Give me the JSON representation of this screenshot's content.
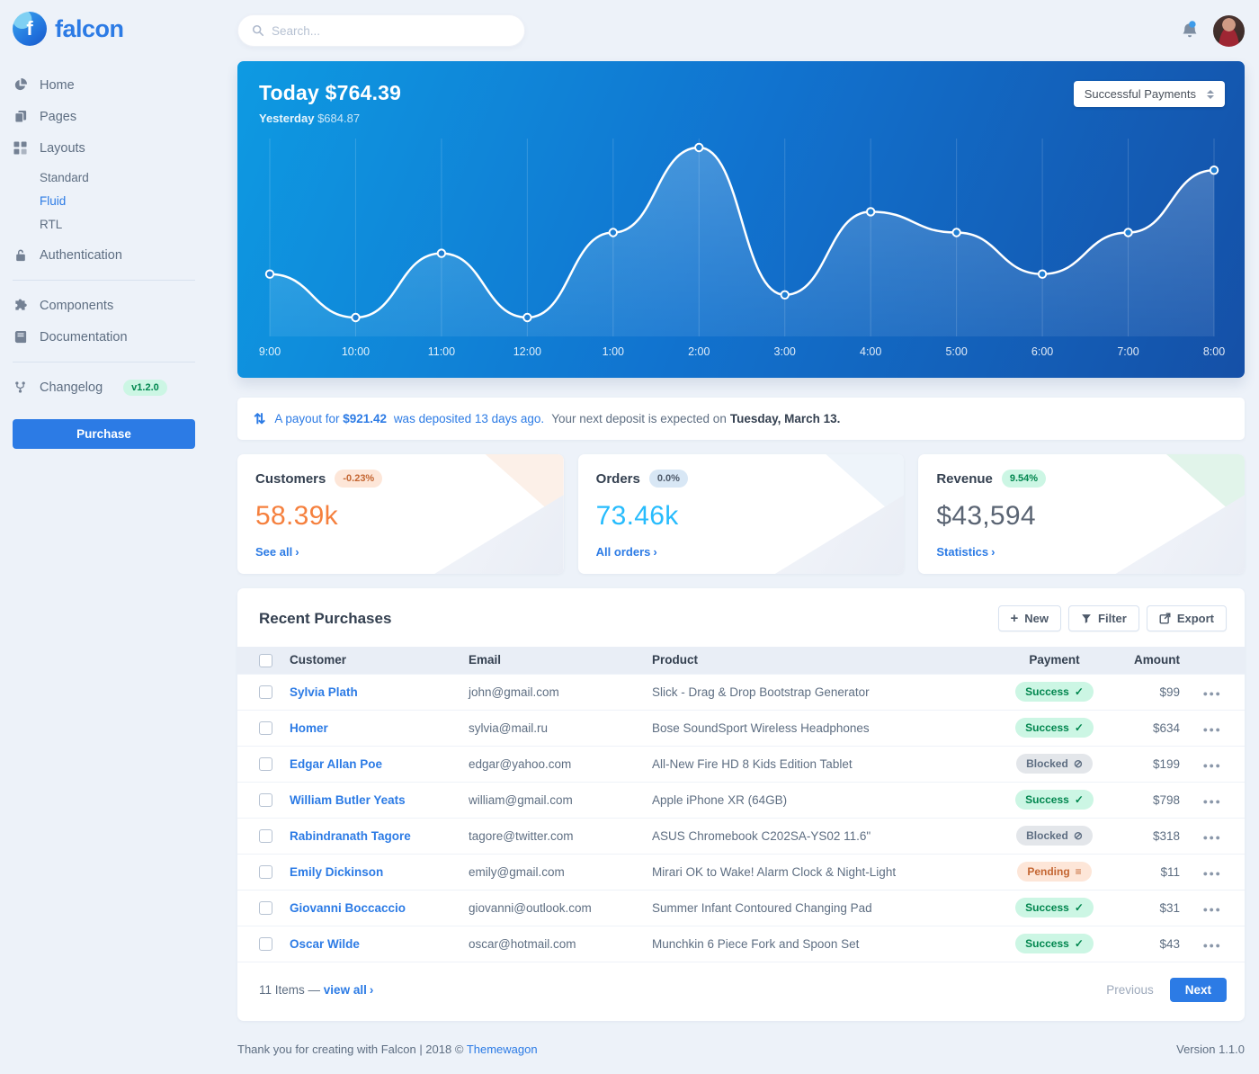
{
  "brand": {
    "name": "falcon"
  },
  "topbar": {
    "search_placeholder": "Search..."
  },
  "sidebar": {
    "items": [
      {
        "label": "Home",
        "icon": "chart-pie-icon"
      },
      {
        "label": "Pages",
        "icon": "copy-icon"
      },
      {
        "label": "Layouts",
        "icon": "grid-icon"
      },
      {
        "label": "Authentication",
        "icon": "unlock-icon"
      },
      {
        "label": "Components",
        "icon": "puzzle-icon"
      },
      {
        "label": "Documentation",
        "icon": "book-icon"
      },
      {
        "label": "Changelog",
        "icon": "code-branch-icon",
        "badge": "v1.2.0"
      }
    ],
    "layout_children": [
      {
        "label": "Standard",
        "active": false
      },
      {
        "label": "Fluid",
        "active": true
      },
      {
        "label": "RTL",
        "active": false
      }
    ],
    "purchase_label": "Purchase"
  },
  "chart_card": {
    "today_label": "Today",
    "today_value": "$764.39",
    "yesterday_label": "Yesterday",
    "yesterday_value": "$684.87",
    "select_value": "Successful Payments"
  },
  "chart_data": {
    "type": "line",
    "title": "Today $764.39 — successful payments by hour",
    "x": [
      "9:00",
      "10:00",
      "11:00",
      "12:00",
      "1:00",
      "2:00",
      "3:00",
      "4:00",
      "5:00",
      "6:00",
      "7:00",
      "8:00"
    ],
    "values": [
      33,
      10,
      44,
      10,
      55,
      100,
      22,
      66,
      55,
      33,
      55,
      88
    ],
    "ylim": [
      0,
      100
    ],
    "grid": "vertical-only",
    "legend": "none",
    "line_color": "#ffffff",
    "area_fill": "rgba(255,255,255,0.18)",
    "background_gradient": [
      "#0e9ae2",
      "#1550a7"
    ]
  },
  "payout": {
    "icon": "exchange-arrows-icon",
    "link_prefix": "A payout for",
    "amount": "$921.42",
    "link_suffix": "was deposited 13 days ago.",
    "text": "Your next deposit is expected on",
    "date": "Tuesday, March 13."
  },
  "stats": [
    {
      "title": "Customers",
      "badge": "-0.23%",
      "value": "58.39k",
      "link": "See all",
      "value_color": "#f5803e",
      "badge_bg": "#fde6d8",
      "badge_color": "#c46632"
    },
    {
      "title": "Orders",
      "badge": "0.0%",
      "value": "73.46k",
      "link": "All orders",
      "value_color": "#27bcfd",
      "badge_bg": "#d8e7f5",
      "badge_color": "#4d5969"
    },
    {
      "title": "Revenue",
      "badge": "9.54%",
      "value": "$43,594",
      "link": "Statistics",
      "value_color": "#5a6473",
      "badge_bg": "#ccf6e4",
      "badge_color": "#00864e"
    }
  ],
  "purchases": {
    "title": "Recent Purchases",
    "buttons": [
      {
        "label": "New",
        "icon": "plus-icon"
      },
      {
        "label": "Filter",
        "icon": "filter-icon"
      },
      {
        "label": "Export",
        "icon": "export-icon"
      }
    ],
    "columns": [
      "Customer",
      "Email",
      "Product",
      "Payment",
      "Amount"
    ],
    "rows": [
      {
        "customer": "Sylvia Plath",
        "email": "john@gmail.com",
        "product": "Slick - Drag & Drop Bootstrap Generator",
        "status": "Success",
        "status_type": "success",
        "status_icon": "check-icon",
        "amount": "$99"
      },
      {
        "customer": "Homer",
        "email": "sylvia@mail.ru",
        "product": "Bose SoundSport Wireless Headphones",
        "status": "Success",
        "status_type": "success",
        "status_icon": "check-icon",
        "amount": "$634"
      },
      {
        "customer": "Edgar Allan Poe",
        "email": "edgar@yahoo.com",
        "product": "All-New Fire HD 8 Kids Edition Tablet",
        "status": "Blocked",
        "status_type": "blocked",
        "status_icon": "ban-icon",
        "amount": "$199"
      },
      {
        "customer": "William Butler Yeats",
        "email": "william@gmail.com",
        "product": "Apple iPhone XR (64GB)",
        "status": "Success",
        "status_type": "success",
        "status_icon": "check-icon",
        "amount": "$798"
      },
      {
        "customer": "Rabindranath Tagore",
        "email": "tagore@twitter.com",
        "product": "ASUS Chromebook C202SA-YS02 11.6\"",
        "status": "Blocked",
        "status_type": "blocked",
        "status_icon": "ban-icon",
        "amount": "$318"
      },
      {
        "customer": "Emily Dickinson",
        "email": "emily@gmail.com",
        "product": "Mirari OK to Wake! Alarm Clock & Night-Light",
        "status": "Pending",
        "status_type": "pending",
        "status_icon": "stream-icon",
        "amount": "$11"
      },
      {
        "customer": "Giovanni Boccaccio",
        "email": "giovanni@outlook.com",
        "product": "Summer Infant Contoured Changing Pad",
        "status": "Success",
        "status_type": "success",
        "status_icon": "check-icon",
        "amount": "$31"
      },
      {
        "customer": "Oscar Wilde",
        "email": "oscar@hotmail.com",
        "product": "Munchkin 6 Piece Fork and Spoon Set",
        "status": "Success",
        "status_type": "success",
        "status_icon": "check-icon",
        "amount": "$43"
      }
    ],
    "footer": {
      "items_text": "11 Items —",
      "view_all": "view all",
      "previous": "Previous",
      "next": "Next"
    }
  },
  "page_footer": {
    "text": "Thank you for creating with Falcon | 2018 ©",
    "link": "Themewagon",
    "version": "Version 1.1.0"
  },
  "colors": {
    "primary": "#2c7be5",
    "success_bg": "#ccf6e4",
    "success_text": "#00864e",
    "pending_bg": "#fde6d8",
    "pending_text": "#c46632",
    "blocked_bg": "#e3e6ea",
    "blocked_text": "#5e6e82",
    "customers_value": "#f5803e",
    "orders_value": "#27bcfd"
  }
}
